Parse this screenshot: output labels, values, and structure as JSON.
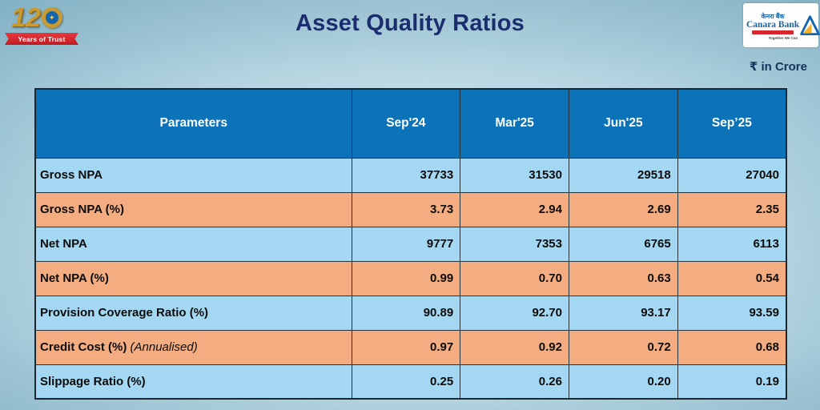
{
  "header": {
    "title": "Asset Quality Ratios",
    "unit_label": "₹ in Crore",
    "left_logo": {
      "number": "12",
      "ribbon_text": "Years of Trust"
    },
    "bank_logo": {
      "hindi_name": "केनरा बैंक",
      "name": "Canara Bank",
      "tagline": "Together We Can"
    }
  },
  "colors": {
    "header_bg": "#0d73b8",
    "header_text": "#ffffff",
    "row_blue": "#a4d7f2",
    "row_orange": "#f4ad80",
    "title_color": "#1b2d6f"
  },
  "chart_data": {
    "type": "table",
    "title": "Asset Quality Ratios",
    "unit": "₹ in Crore",
    "columns": [
      "Parameters",
      "Sep'24",
      "Mar'25",
      "Jun'25",
      "Sep’25"
    ],
    "rows": [
      {
        "parameter": "Gross NPA",
        "note": "",
        "values": [
          "37733",
          "31530",
          "29518",
          "27040"
        ]
      },
      {
        "parameter": "Gross NPA (%)",
        "note": "",
        "values": [
          "3.73",
          "2.94",
          "2.69",
          "2.35"
        ]
      },
      {
        "parameter": "Net NPA",
        "note": "",
        "values": [
          "9777",
          "7353",
          "6765",
          "6113"
        ]
      },
      {
        "parameter": "Net NPA (%)",
        "note": "",
        "values": [
          "0.99",
          "0.70",
          "0.63",
          "0.54"
        ]
      },
      {
        "parameter": "Provision Coverage Ratio (%)",
        "note": "",
        "values": [
          "90.89",
          "92.70",
          "93.17",
          "93.59"
        ]
      },
      {
        "parameter": "Credit Cost (%)",
        "note": "(Annualised)",
        "values": [
          "0.97",
          "0.92",
          "0.72",
          "0.68"
        ]
      },
      {
        "parameter": "Slippage Ratio (%)",
        "note": "",
        "values": [
          "0.25",
          "0.26",
          "0.20",
          "0.19"
        ]
      }
    ]
  }
}
